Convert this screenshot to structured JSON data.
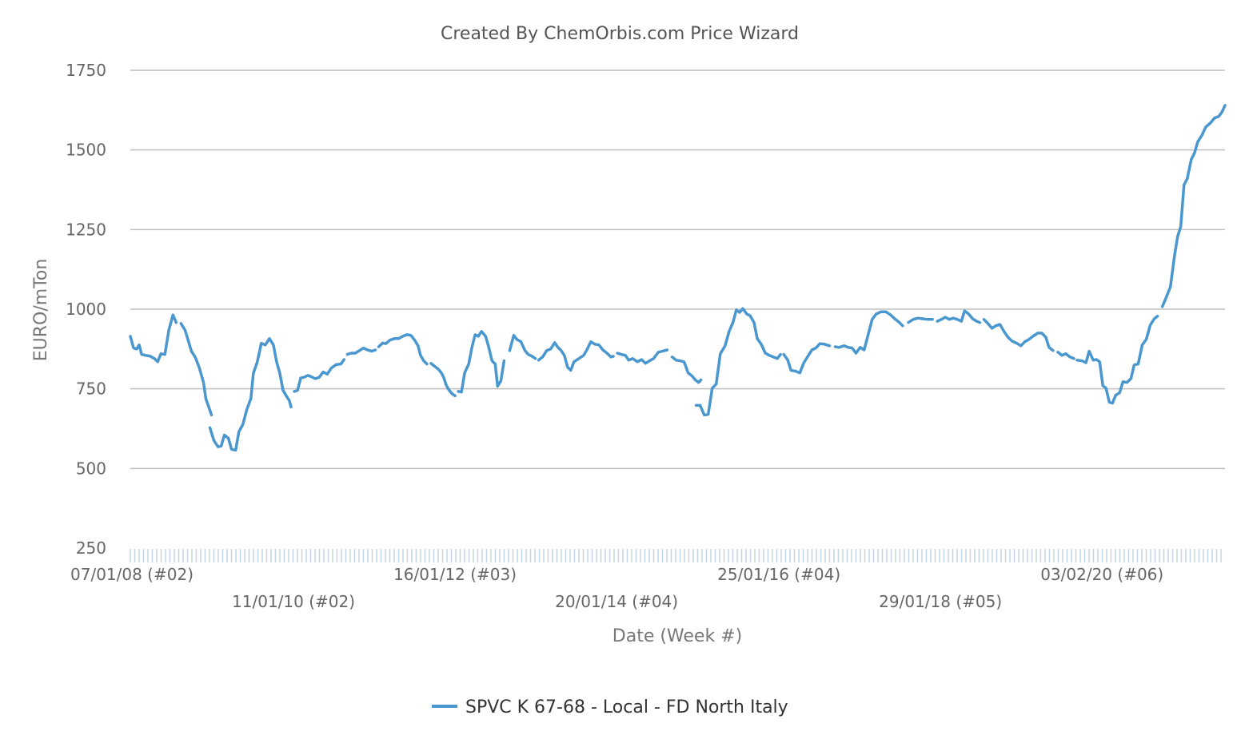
{
  "chart_data": {
    "type": "line",
    "title": "Created By ChemOrbis.com Price Wizard",
    "xlabel": "Date (Week #)",
    "ylabel": "EURO/mTon",
    "ylim": [
      250,
      1750
    ],
    "yticks": [
      250,
      500,
      750,
      1000,
      1250,
      1500,
      1750
    ],
    "xlim": [
      2008.02,
      2021.64
    ],
    "x_tick_labels": [
      {
        "x": 2008.02,
        "label": "07/01/08 (#02)"
      },
      {
        "x": 2010.03,
        "label": "11/01/10 (#02)"
      },
      {
        "x": 2012.04,
        "label": "16/01/12 (#03)"
      },
      {
        "x": 2014.05,
        "label": "20/01/14 (#04)"
      },
      {
        "x": 2016.07,
        "label": "25/01/16 (#04)"
      },
      {
        "x": 2018.08,
        "label": "29/01/18 (#05)"
      },
      {
        "x": 2020.09,
        "label": "03/02/20 (#06)"
      }
    ],
    "grid": true,
    "legend_position": "bottom-center",
    "series": [
      {
        "name": "SPVC K 67-68 - Local - FD North Italy",
        "color": "#4a97cf",
        "points": [
          [
            2008.02,
            915
          ],
          [
            2008.06,
            878
          ],
          [
            2008.1,
            875
          ],
          [
            2008.13,
            888
          ],
          [
            2008.16,
            858
          ],
          [
            2008.21,
            855
          ],
          [
            2008.26,
            853
          ],
          [
            2008.32,
            845
          ],
          [
            2008.36,
            835
          ],
          [
            2008.4,
            860
          ],
          [
            2008.45,
            858
          ],
          [
            2008.5,
            935
          ],
          [
            2008.55,
            982
          ],
          [
            2008.59,
            958
          ],
          null,
          [
            2008.65,
            955
          ],
          [
            2008.7,
            935
          ],
          [
            2008.74,
            902
          ],
          [
            2008.78,
            868
          ],
          [
            2008.83,
            848
          ],
          [
            2008.88,
            815
          ],
          [
            2008.93,
            770
          ],
          [
            2008.96,
            718
          ],
          [
            2009.0,
            690
          ],
          [
            2009.03,
            668
          ],
          null,
          [
            2009.01,
            628
          ],
          [
            2009.06,
            588
          ],
          [
            2009.11,
            568
          ],
          [
            2009.15,
            570
          ],
          [
            2009.19,
            605
          ],
          [
            2009.24,
            595
          ],
          [
            2009.28,
            560
          ],
          [
            2009.33,
            557
          ],
          [
            2009.37,
            615
          ],
          [
            2009.42,
            638
          ],
          [
            2009.47,
            685
          ],
          [
            2009.52,
            720
          ],
          [
            2009.55,
            798
          ],
          [
            2009.6,
            835
          ],
          [
            2009.65,
            893
          ],
          [
            2009.7,
            888
          ],
          [
            2009.75,
            908
          ],
          [
            2009.8,
            888
          ],
          [
            2009.84,
            835
          ],
          [
            2009.88,
            798
          ],
          [
            2009.92,
            745
          ],
          [
            2009.96,
            728
          ],
          [
            2010.0,
            712
          ],
          [
            2010.02,
            693
          ],
          null,
          [
            2010.06,
            742
          ],
          [
            2010.1,
            745
          ],
          [
            2010.14,
            784
          ],
          [
            2010.18,
            786
          ],
          [
            2010.23,
            792
          ],
          [
            2010.28,
            787
          ],
          [
            2010.32,
            782
          ],
          [
            2010.37,
            786
          ],
          [
            2010.42,
            803
          ],
          [
            2010.47,
            796
          ],
          [
            2010.52,
            815
          ],
          [
            2010.58,
            826
          ],
          [
            2010.64,
            828
          ],
          [
            2010.68,
            842
          ],
          null,
          [
            2010.72,
            858
          ],
          [
            2010.77,
            862
          ],
          [
            2010.82,
            862
          ],
          [
            2010.87,
            870
          ],
          [
            2010.92,
            878
          ],
          [
            2010.97,
            872
          ],
          [
            2011.02,
            868
          ],
          [
            2011.07,
            872
          ],
          null,
          [
            2011.11,
            882
          ],
          [
            2011.16,
            894
          ],
          [
            2011.2,
            892
          ],
          [
            2011.25,
            903
          ],
          [
            2011.31,
            908
          ],
          [
            2011.36,
            908
          ],
          [
            2011.41,
            915
          ],
          [
            2011.46,
            920
          ],
          [
            2011.51,
            918
          ],
          [
            2011.56,
            902
          ],
          [
            2011.6,
            885
          ],
          [
            2011.63,
            855
          ],
          [
            2011.67,
            838
          ],
          [
            2011.71,
            828
          ],
          null,
          [
            2011.76,
            830
          ],
          [
            2011.8,
            822
          ],
          [
            2011.85,
            812
          ],
          [
            2011.89,
            800
          ],
          [
            2011.92,
            785
          ],
          [
            2011.95,
            762
          ],
          [
            2011.98,
            748
          ],
          [
            2012.02,
            735
          ],
          [
            2012.06,
            728
          ],
          null,
          [
            2012.1,
            742
          ],
          [
            2012.14,
            740
          ],
          [
            2012.18,
            800
          ],
          [
            2012.23,
            828
          ],
          [
            2012.27,
            880
          ],
          [
            2012.31,
            920
          ],
          [
            2012.35,
            915
          ],
          [
            2012.39,
            930
          ],
          [
            2012.44,
            915
          ],
          [
            2012.48,
            880
          ],
          [
            2012.52,
            838
          ],
          [
            2012.56,
            828
          ],
          [
            2012.59,
            758
          ],
          [
            2012.63,
            775
          ],
          [
            2012.67,
            838
          ],
          null,
          [
            2012.74,
            870
          ],
          [
            2012.79,
            918
          ],
          [
            2012.83,
            905
          ],
          [
            2012.88,
            898
          ],
          [
            2012.93,
            870
          ],
          [
            2012.97,
            858
          ],
          [
            2013.02,
            852
          ],
          [
            2013.06,
            845
          ],
          null,
          [
            2013.1,
            840
          ],
          [
            2013.15,
            850
          ],
          [
            2013.2,
            870
          ],
          [
            2013.25,
            875
          ],
          [
            2013.3,
            895
          ],
          [
            2013.34,
            880
          ],
          [
            2013.38,
            870
          ],
          [
            2013.42,
            855
          ],
          [
            2013.46,
            818
          ],
          [
            2013.5,
            808
          ],
          [
            2013.54,
            835
          ],
          [
            2013.6,
            845
          ],
          [
            2013.66,
            855
          ],
          [
            2013.7,
            872
          ],
          [
            2013.75,
            898
          ],
          [
            2013.8,
            890
          ],
          [
            2013.85,
            888
          ],
          [
            2013.9,
            872
          ],
          [
            2013.95,
            862
          ],
          [
            2014.0,
            850
          ],
          [
            2014.03,
            852
          ],
          null,
          [
            2014.08,
            862
          ],
          [
            2014.13,
            858
          ],
          [
            2014.18,
            855
          ],
          [
            2014.22,
            840
          ],
          [
            2014.27,
            845
          ],
          [
            2014.33,
            835
          ],
          [
            2014.38,
            842
          ],
          [
            2014.43,
            830
          ],
          [
            2014.48,
            838
          ],
          [
            2014.53,
            845
          ],
          [
            2014.59,
            865
          ],
          [
            2014.64,
            868
          ],
          [
            2014.7,
            872
          ],
          null,
          [
            2014.76,
            850
          ],
          [
            2014.81,
            840
          ],
          [
            2014.86,
            838
          ],
          [
            2014.91,
            835
          ],
          [
            2014.96,
            800
          ],
          [
            2015.01,
            790
          ],
          [
            2015.05,
            778
          ],
          [
            2015.09,
            770
          ],
          [
            2015.12,
            778
          ],
          null,
          [
            2015.06,
            698
          ],
          [
            2015.11,
            698
          ],
          [
            2015.16,
            668
          ],
          [
            2015.21,
            670
          ],
          [
            2015.26,
            752
          ],
          [
            2015.31,
            765
          ],
          [
            2015.36,
            860
          ],
          [
            2015.42,
            885
          ],
          [
            2015.47,
            930
          ],
          [
            2015.52,
            960
          ],
          [
            2015.56,
            998
          ],
          [
            2015.6,
            990
          ],
          [
            2015.64,
            1002
          ],
          [
            2015.69,
            985
          ],
          [
            2015.73,
            980
          ],
          [
            2015.78,
            958
          ],
          [
            2015.82,
            908
          ],
          [
            2015.87,
            890
          ],
          [
            2015.92,
            862
          ],
          [
            2015.97,
            855
          ],
          [
            2016.02,
            850
          ],
          [
            2016.07,
            845
          ],
          [
            2016.11,
            858
          ],
          null,
          [
            2016.15,
            858
          ],
          [
            2016.2,
            840
          ],
          [
            2016.24,
            808
          ],
          [
            2016.3,
            805
          ],
          [
            2016.35,
            800
          ],
          [
            2016.4,
            832
          ],
          [
            2016.45,
            852
          ],
          [
            2016.5,
            872
          ],
          [
            2016.55,
            878
          ],
          [
            2016.6,
            892
          ],
          [
            2016.66,
            890
          ],
          [
            2016.72,
            885
          ],
          null,
          [
            2016.79,
            882
          ],
          [
            2016.84,
            880
          ],
          [
            2016.9,
            885
          ],
          [
            2016.95,
            880
          ],
          [
            2017.0,
            878
          ],
          [
            2017.05,
            862
          ],
          [
            2017.1,
            880
          ],
          [
            2017.15,
            872
          ],
          [
            2017.2,
            920
          ],
          [
            2017.25,
            968
          ],
          [
            2017.3,
            985
          ],
          [
            2017.36,
            992
          ],
          [
            2017.42,
            992
          ],
          [
            2017.48,
            982
          ],
          [
            2017.53,
            970
          ],
          [
            2017.58,
            960
          ],
          [
            2017.63,
            948
          ],
          null,
          [
            2017.7,
            958
          ],
          [
            2017.76,
            968
          ],
          [
            2017.82,
            972
          ],
          [
            2017.88,
            970
          ],
          [
            2017.94,
            968
          ],
          [
            2018.0,
            968
          ],
          null,
          [
            2018.06,
            962
          ],
          [
            2018.11,
            968
          ],
          [
            2018.16,
            975
          ],
          [
            2018.21,
            968
          ],
          [
            2018.26,
            972
          ],
          [
            2018.31,
            968
          ],
          [
            2018.36,
            962
          ],
          [
            2018.4,
            995
          ],
          [
            2018.45,
            985
          ],
          [
            2018.5,
            970
          ],
          [
            2018.55,
            962
          ],
          [
            2018.59,
            958
          ],
          null,
          [
            2018.64,
            968
          ],
          [
            2018.69,
            955
          ],
          [
            2018.74,
            940
          ],
          [
            2018.79,
            948
          ],
          [
            2018.84,
            952
          ],
          [
            2018.89,
            930
          ],
          [
            2018.94,
            912
          ],
          [
            2018.99,
            900
          ],
          [
            2019.05,
            893
          ],
          [
            2019.1,
            885
          ],
          [
            2019.15,
            898
          ],
          [
            2019.2,
            905
          ],
          [
            2019.25,
            915
          ],
          [
            2019.31,
            925
          ],
          [
            2019.36,
            925
          ],
          [
            2019.41,
            912
          ],
          [
            2019.45,
            880
          ],
          [
            2019.5,
            870
          ],
          null,
          [
            2019.56,
            865
          ],
          [
            2019.61,
            855
          ],
          [
            2019.66,
            860
          ],
          [
            2019.71,
            850
          ],
          [
            2019.76,
            845
          ],
          null,
          [
            2019.8,
            840
          ],
          [
            2019.86,
            838
          ],
          [
            2019.91,
            832
          ],
          [
            2019.95,
            868
          ],
          [
            2020.0,
            840
          ],
          [
            2020.04,
            842
          ],
          [
            2020.08,
            835
          ],
          [
            2020.12,
            760
          ],
          [
            2020.16,
            752
          ],
          [
            2020.2,
            708
          ],
          [
            2020.24,
            705
          ],
          [
            2020.28,
            730
          ],
          [
            2020.33,
            738
          ],
          [
            2020.37,
            772
          ],
          [
            2020.42,
            770
          ],
          [
            2020.47,
            782
          ],
          [
            2020.51,
            825
          ],
          [
            2020.56,
            828
          ],
          [
            2020.61,
            888
          ],
          [
            2020.66,
            905
          ],
          [
            2020.71,
            950
          ],
          [
            2020.76,
            970
          ],
          [
            2020.8,
            978
          ],
          null,
          [
            2020.86,
            1008
          ],
          [
            2020.91,
            1038
          ],
          [
            2020.96,
            1070
          ],
          [
            2021.01,
            1165
          ],
          [
            2021.05,
            1228
          ],
          [
            2021.09,
            1260
          ],
          [
            2021.13,
            1390
          ],
          [
            2021.17,
            1410
          ],
          [
            2021.22,
            1470
          ],
          [
            2021.26,
            1490
          ],
          [
            2021.3,
            1525
          ],
          [
            2021.35,
            1545
          ],
          [
            2021.4,
            1572
          ],
          [
            2021.46,
            1585
          ],
          [
            2021.51,
            1600
          ],
          [
            2021.56,
            1605
          ],
          [
            2021.6,
            1618
          ],
          [
            2021.64,
            1640
          ]
        ]
      }
    ]
  }
}
